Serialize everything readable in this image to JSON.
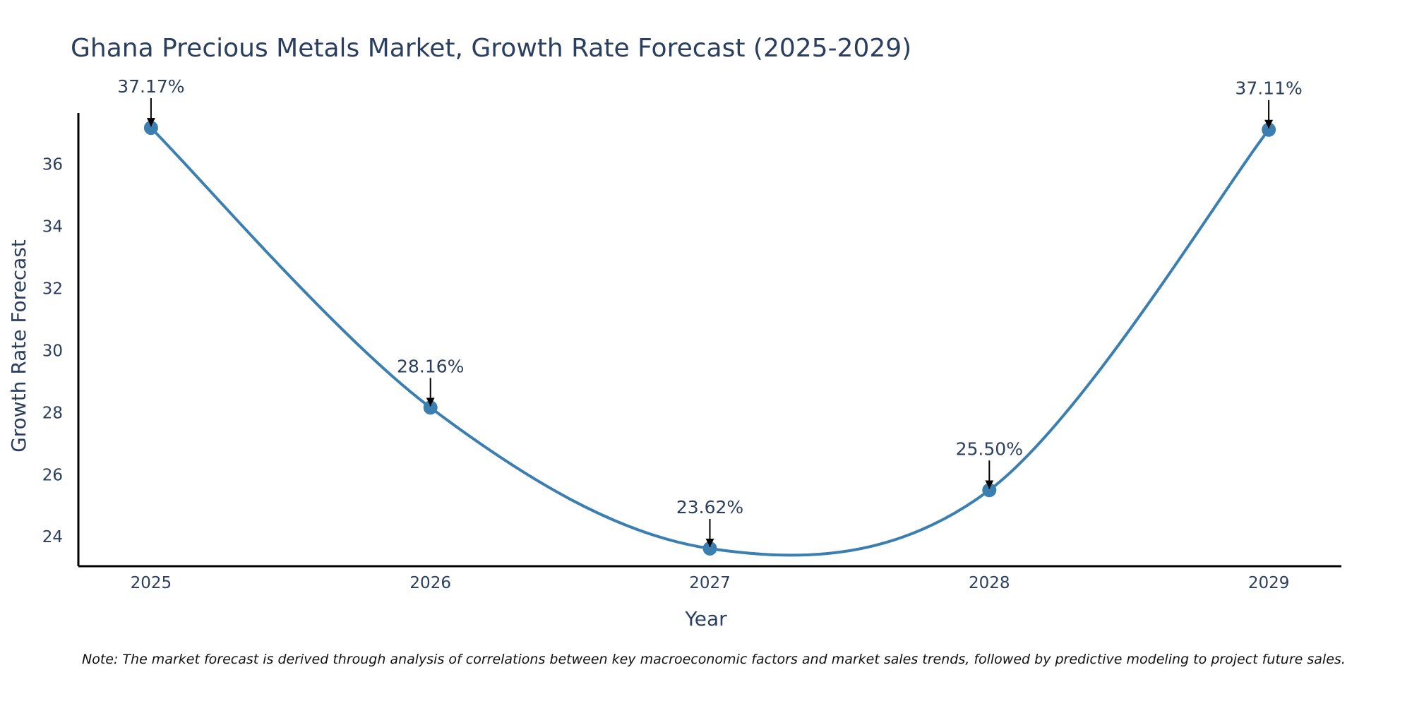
{
  "chart_data": {
    "type": "line",
    "title": "Ghana Precious Metals Market, Growth Rate Forecast (2025-2029)",
    "xlabel": "Year",
    "ylabel": "Growth Rate Forecast",
    "categories": [
      "2025",
      "2026",
      "2027",
      "2028",
      "2029"
    ],
    "x": [
      2025,
      2026,
      2027,
      2028,
      2029
    ],
    "values": [
      37.17,
      28.16,
      23.62,
      25.5,
      37.11
    ],
    "data_labels": [
      "37.17%",
      "28.16%",
      "23.62%",
      "25.50%",
      "37.11%"
    ],
    "ylim": [
      23.05,
      37.65
    ],
    "xlim": [
      2024.74,
      2029.26
    ],
    "y_ticks": [
      24,
      26,
      28,
      30,
      32,
      34,
      36
    ],
    "y_tick_labels": [
      "24",
      "26",
      "28",
      "30",
      "32",
      "34",
      "36"
    ],
    "grid": false,
    "line_shape": "spline",
    "note": "Note: The market forecast is derived through analysis of correlations between key macroeconomic factors and market sales trends, followed by predictive modeling to project future sales."
  },
  "colors": {
    "line": "#3b7fb0",
    "marker": "#3b7fb0",
    "axis": "#000000",
    "text": "#2a3f5f",
    "arrow": "#000000"
  }
}
